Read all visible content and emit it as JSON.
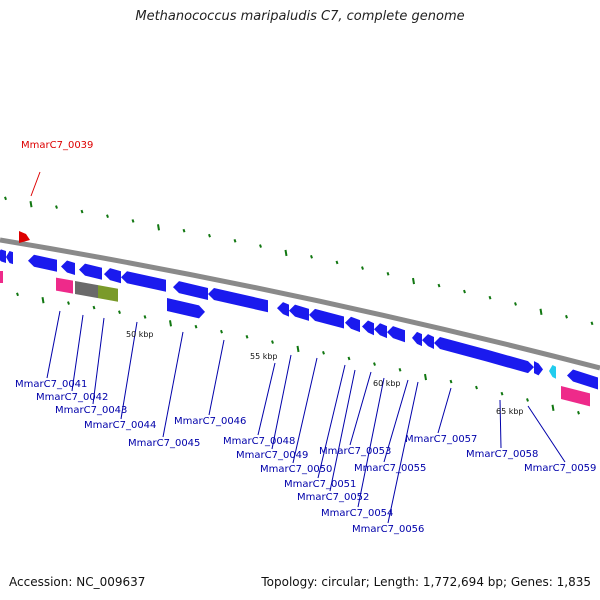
{
  "title": "Methanococcus maripaludis C7, complete genome",
  "accession_text": "Accession: NC_009637",
  "topology_text": "Topology: circular; Length: 1,772,694 bp; Genes: 1,835",
  "colors": {
    "backbone": "#8a8a8a",
    "cds_blue": "#1a1aee",
    "highlight_red": "#dd0000",
    "label_blue": "#0000aa",
    "magenta": "#ee2a8a",
    "gray": "#6a6a6a",
    "olive": "#7a9a2a",
    "cyan": "#22ccee",
    "tick_green": "#117711"
  },
  "scale_labels": [
    {
      "id": "kbp50",
      "text": "50 kbp"
    },
    {
      "id": "kbp55",
      "text": "55 kbp"
    },
    {
      "id": "kbp60",
      "text": "60 kbp"
    },
    {
      "id": "kbp65",
      "text": "65 kbp"
    }
  ],
  "gene_labels": [
    {
      "id": "MmarC7_0039",
      "text": "MmarC7_0039",
      "color": "red"
    },
    {
      "id": "MmarC7_0041",
      "text": "MmarC7_0041",
      "color": "blue"
    },
    {
      "id": "MmarC7_0042",
      "text": "MmarC7_0042",
      "color": "blue"
    },
    {
      "id": "MmarC7_0043",
      "text": "MmarC7_0043",
      "color": "blue"
    },
    {
      "id": "MmarC7_0044",
      "text": "MmarC7_0044",
      "color": "blue"
    },
    {
      "id": "MmarC7_0045",
      "text": "MmarC7_0045",
      "color": "blue"
    },
    {
      "id": "MmarC7_0046",
      "text": "MmarC7_0046",
      "color": "blue"
    },
    {
      "id": "MmarC7_0048",
      "text": "MmarC7_0048",
      "color": "blue"
    },
    {
      "id": "MmarC7_0049",
      "text": "MmarC7_0049",
      "color": "blue"
    },
    {
      "id": "MmarC7_0050",
      "text": "MmarC7_0050",
      "color": "blue"
    },
    {
      "id": "MmarC7_0051",
      "text": "MmarC7_0051",
      "color": "blue"
    },
    {
      "id": "MmarC7_0052",
      "text": "MmarC7_0052",
      "color": "blue"
    },
    {
      "id": "MmarC7_0053",
      "text": "MmarC7_0053",
      "color": "blue"
    },
    {
      "id": "MmarC7_0054",
      "text": "MmarC7_0054",
      "color": "blue"
    },
    {
      "id": "MmarC7_0055",
      "text": "MmarC7_0055",
      "color": "blue"
    },
    {
      "id": "MmarC7_0056",
      "text": "MmarC7_0056",
      "color": "blue"
    },
    {
      "id": "MmarC7_0057",
      "text": "MmarC7_0057",
      "color": "blue"
    },
    {
      "id": "MmarC7_0058",
      "text": "MmarC7_0058",
      "color": "blue"
    },
    {
      "id": "MmarC7_0059",
      "text": "MmarC7_0059",
      "color": "blue"
    }
  ]
}
